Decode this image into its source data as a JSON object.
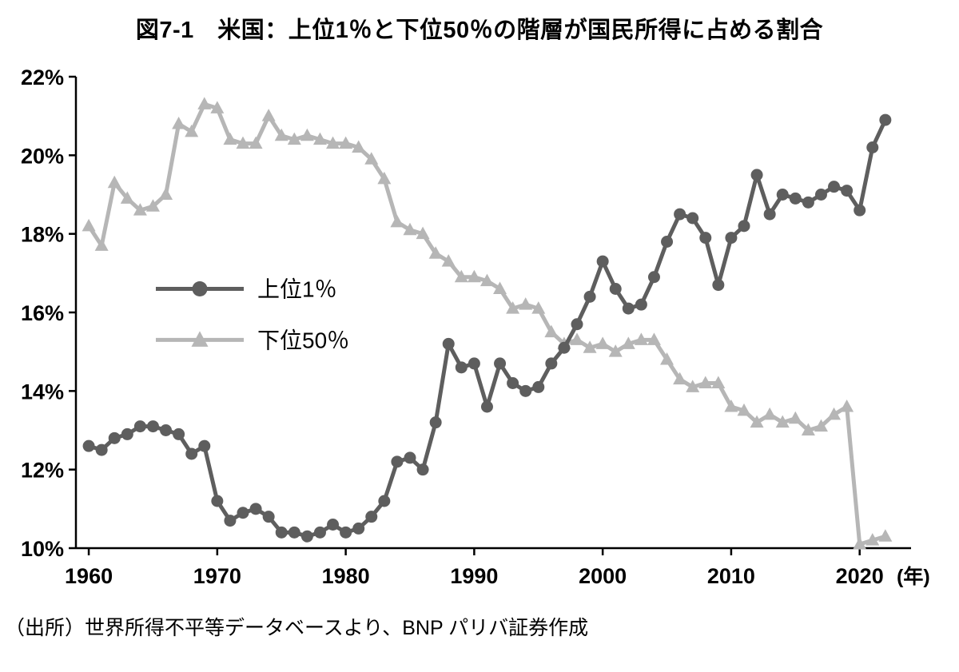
{
  "header": {
    "title": "図7-1　米国：上位1％と下位50％の階層が国民所得に占める割合"
  },
  "footer": {
    "source": "（出所）世界所得不平等データベースより、BNP パリバ証券作成"
  },
  "chart_data": {
    "type": "line",
    "title": "図7-1　米国：上位1％と下位50％の階層が国民所得に占める割合",
    "xlabel": "(年)",
    "ylabel": "",
    "x_axis_suffix": "(年)",
    "ytick_suffix": "%",
    "xlim": [
      1959,
      2024
    ],
    "ylim": [
      10,
      22
    ],
    "yticks": [
      10,
      12,
      14,
      16,
      18,
      20,
      22
    ],
    "xticks": [
      1960,
      1970,
      1980,
      1990,
      2000,
      2010,
      2020
    ],
    "grid": false,
    "legend_position": "inside-left-middle",
    "years": [
      1960,
      1961,
      1962,
      1963,
      1964,
      1965,
      1966,
      1967,
      1968,
      1969,
      1970,
      1971,
      1972,
      1973,
      1974,
      1975,
      1976,
      1977,
      1978,
      1979,
      1980,
      1981,
      1982,
      1983,
      1984,
      1985,
      1986,
      1987,
      1988,
      1989,
      1990,
      1991,
      1992,
      1993,
      1994,
      1995,
      1996,
      1997,
      1998,
      1999,
      2000,
      2001,
      2002,
      2003,
      2004,
      2005,
      2006,
      2007,
      2008,
      2009,
      2010,
      2011,
      2012,
      2013,
      2014,
      2015,
      2016,
      2017,
      2018,
      2019,
      2020,
      2021,
      2022
    ],
    "series": [
      {
        "name": "上位1％",
        "marker": "circle",
        "color": "#5e5e5e",
        "values": [
          12.6,
          12.5,
          12.8,
          12.9,
          13.1,
          13.1,
          13.0,
          12.9,
          12.4,
          12.6,
          11.2,
          10.7,
          10.9,
          11.0,
          10.8,
          10.4,
          10.4,
          10.3,
          10.4,
          10.6,
          10.4,
          10.5,
          10.8,
          11.2,
          12.2,
          12.3,
          12.0,
          13.2,
          15.2,
          14.6,
          14.7,
          13.6,
          14.7,
          14.2,
          14.0,
          14.1,
          14.7,
          15.1,
          15.7,
          16.4,
          17.3,
          16.6,
          16.1,
          16.2,
          16.9,
          17.8,
          18.5,
          18.4,
          17.9,
          16.7,
          17.9,
          18.2,
          19.5,
          18.5,
          19.0,
          18.9,
          18.8,
          19.0,
          19.2,
          19.1,
          18.6,
          20.2,
          20.9
        ]
      },
      {
        "name": "下位50％",
        "marker": "triangle",
        "color": "#b6b6b6",
        "values": [
          18.2,
          17.7,
          19.3,
          18.9,
          18.6,
          18.7,
          19.0,
          20.8,
          20.6,
          21.3,
          21.2,
          20.4,
          20.3,
          20.3,
          21.0,
          20.5,
          20.4,
          20.5,
          20.4,
          20.3,
          20.3,
          20.2,
          19.9,
          19.4,
          18.3,
          18.1,
          18.0,
          17.5,
          17.3,
          16.9,
          16.9,
          16.8,
          16.6,
          16.1,
          16.2,
          16.1,
          15.5,
          15.2,
          15.3,
          15.1,
          15.2,
          15.0,
          15.2,
          15.3,
          15.3,
          14.8,
          14.3,
          14.1,
          14.2,
          14.2,
          13.6,
          13.5,
          13.2,
          13.4,
          13.2,
          13.3,
          13.0,
          13.1,
          13.4,
          13.6,
          10.1,
          10.2,
          10.3
        ]
      }
    ]
  }
}
